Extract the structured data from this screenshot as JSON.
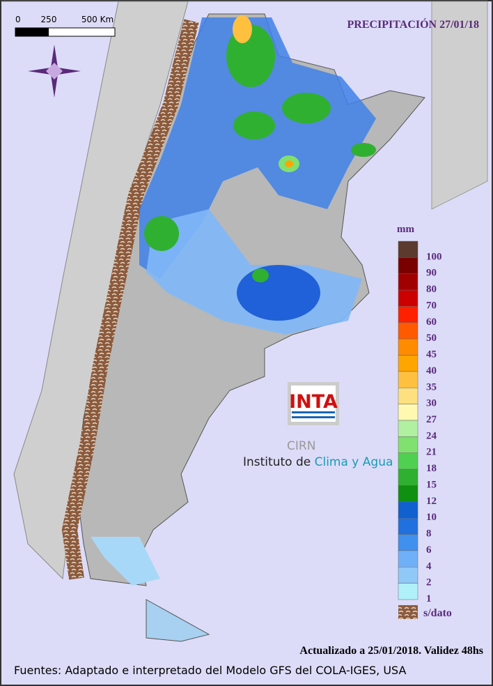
{
  "title": "PRECIPITACIÓN 27/01/18",
  "scale": {
    "labels": [
      "0",
      "250",
      "500 Km"
    ]
  },
  "legend": {
    "unit": "mm",
    "levels": [
      {
        "label": "100",
        "color": "#5c3a2e"
      },
      {
        "label": "90",
        "color": "#7a0000"
      },
      {
        "label": "80",
        "color": "#a00000"
      },
      {
        "label": "70",
        "color": "#cc0000"
      },
      {
        "label": "60",
        "color": "#ff2000"
      },
      {
        "label": "50",
        "color": "#ff5a00"
      },
      {
        "label": "45",
        "color": "#ff8c00"
      },
      {
        "label": "40",
        "color": "#ffa500"
      },
      {
        "label": "35",
        "color": "#ffc040"
      },
      {
        "label": "30",
        "color": "#ffe080"
      },
      {
        "label": "27",
        "color": "#fff8b0"
      },
      {
        "label": "24",
        "color": "#b0f0a0"
      },
      {
        "label": "21",
        "color": "#80e070"
      },
      {
        "label": "18",
        "color": "#50d050"
      },
      {
        "label": "15",
        "color": "#30b030"
      },
      {
        "label": "12",
        "color": "#109010"
      },
      {
        "label": "10",
        "color": "#1060d0"
      },
      {
        "label": "8",
        "color": "#2070e0"
      },
      {
        "label": "6",
        "color": "#4090f0"
      },
      {
        "label": "4",
        "color": "#70b0f8"
      },
      {
        "label": "2",
        "color": "#90c8f8"
      },
      {
        "label": "1",
        "color": "#b0f0f8"
      }
    ],
    "no_data": "s/dato"
  },
  "logo": {
    "brand": "INTA",
    "acronym": "CIRN",
    "institute": "Instituto de",
    "institute_highlight": "Clima y Agua"
  },
  "updated": "Actualizado a 25/01/2018. Validez 48hs",
  "sources": "Fuentes: Adaptado e interpretado del Modelo GFS del COLA-IGES, USA"
}
